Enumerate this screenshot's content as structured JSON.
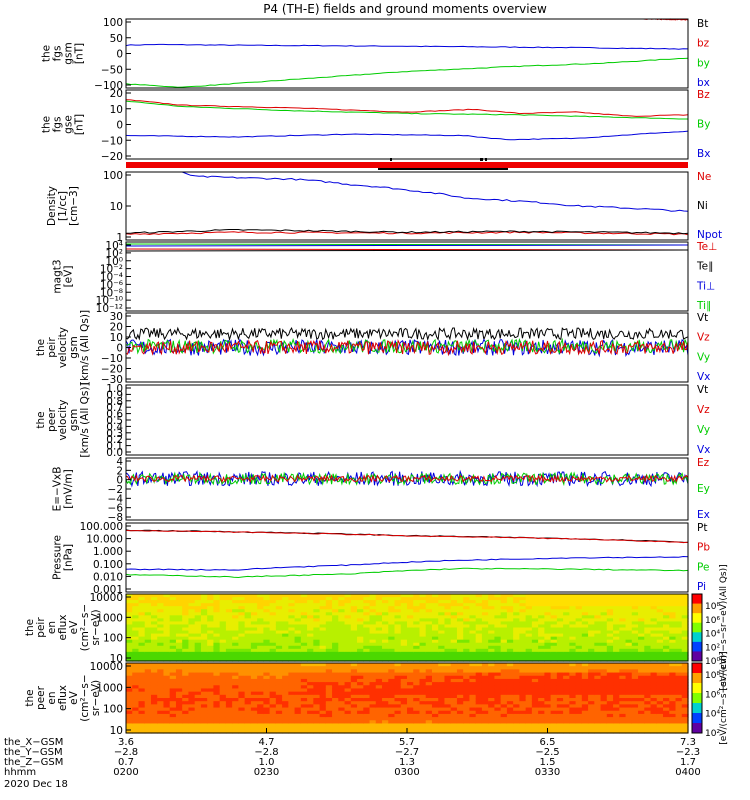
{
  "title": "P4 (TH-E) fields and ground moments overview",
  "chart_data": [
    {
      "type": "line",
      "panel": "fgs_gsm",
      "ylabel": [
        "the",
        "fgs",
        "gsm",
        "[nT]"
      ],
      "ylim": [
        -100,
        100
      ],
      "yticks": [
        "100",
        "50",
        "0",
        "−50",
        "−100"
      ],
      "legend": [
        {
          "name": "Bt",
          "color": "#000000"
        },
        {
          "name": "bz",
          "color": "#dd0000"
        },
        {
          "name": "by",
          "color": "#00cc00"
        },
        {
          "name": "bx",
          "color": "#0000dd"
        }
      ],
      "series": [
        {
          "name": "bx",
          "color": "#0000dd",
          "x": [
            0,
            0.05,
            0.2,
            0.5,
            0.8,
            1
          ],
          "values": [
            24,
            26,
            24,
            21,
            17,
            13
          ]
        },
        {
          "name": "by",
          "color": "#00cc00",
          "x": [
            0,
            0.1,
            0.3,
            0.5,
            0.7,
            0.85,
            1
          ],
          "values": [
            -88,
            -98,
            -75,
            -52,
            -37,
            -28,
            -13
          ]
        },
        {
          "name": "bz",
          "color": "#dd0000",
          "x": [
            0.92,
            1
          ],
          "values": [
            100,
            98
          ]
        }
      ]
    },
    {
      "type": "line",
      "panel": "fgs_gse",
      "ylabel": [
        "the",
        "fgs",
        "gse",
        "[nT]"
      ],
      "ylim": [
        -25,
        25
      ],
      "yticks": [
        "20",
        "10",
        "0",
        "−10",
        "−20"
      ],
      "legend": [
        {
          "name": "Bz",
          "color": "#dd0000"
        },
        {
          "name": "By",
          "color": "#00cc00"
        },
        {
          "name": "Bx",
          "color": "#0000dd"
        }
      ],
      "series": [
        {
          "name": "Bz",
          "color": "#dd0000",
          "x": [
            0,
            0.1,
            0.3,
            0.5,
            0.62,
            0.7,
            0.8,
            0.9,
            1
          ],
          "values": [
            18,
            14,
            12,
            9,
            11,
            8,
            9,
            6,
            7
          ]
        },
        {
          "name": "By",
          "color": "#00cc00",
          "x": [
            0,
            0.1,
            0.3,
            0.5,
            0.7,
            0.9,
            1
          ],
          "values": [
            17,
            13,
            10,
            8,
            7,
            5,
            4
          ]
        },
        {
          "name": "Bx",
          "color": "#0000dd",
          "x": [
            0,
            0.2,
            0.4,
            0.6,
            0.68,
            0.8,
            0.95,
            1
          ],
          "values": [
            -8,
            -9,
            -7,
            -8,
            -11,
            -10,
            -6,
            -5
          ]
        }
      ]
    },
    {
      "type": "line",
      "panel": "density",
      "ylabel": [
        "Density",
        "[1/cc]",
        "[cm−3]"
      ],
      "yscale": "log",
      "ylim": [
        0.25,
        250
      ],
      "yticks": [
        "100",
        "10",
        "1"
      ],
      "legend": [
        {
          "name": "Ne",
          "color": "#dd0000"
        },
        {
          "name": "Ni",
          "color": "#000000"
        },
        {
          "name": "Npot",
          "color": "#0000dd"
        }
      ],
      "series": [
        {
          "name": "Npot",
          "color": "#0000dd",
          "x": [
            0.1,
            0.12,
            0.2,
            0.3,
            0.4,
            0.5,
            0.6,
            0.8,
            1
          ],
          "values": [
            250,
            160,
            140,
            120,
            70,
            40,
            18,
            8,
            4.5
          ]
        },
        {
          "name": "Ne",
          "color": "#dd0000",
          "x": [
            0,
            0.2,
            0.5,
            0.7,
            1
          ],
          "values": [
            0.45,
            0.55,
            0.5,
            0.55,
            0.45
          ]
        },
        {
          "name": "Ni",
          "color": "#000000",
          "x": [
            0,
            0.2,
            0.5,
            0.7,
            1
          ],
          "values": [
            0.5,
            0.7,
            0.55,
            0.6,
            0.5
          ]
        }
      ]
    },
    {
      "type": "line",
      "panel": "temperature",
      "ylabel": [
        "magt3",
        "[eV]"
      ],
      "yscale": "log",
      "yticks": [
        "10⁴",
        "10²",
        "10⁰",
        "10⁻²",
        "10⁻⁴",
        "10⁻⁶",
        "10⁻⁸",
        "10⁻¹⁰",
        "10⁻¹²"
      ],
      "legend": [
        {
          "name": "Te⊥",
          "color": "#dd0000"
        },
        {
          "name": "Te∥",
          "color": "#000000"
        },
        {
          "name": "Ti⊥",
          "color": "#0000dd"
        },
        {
          "name": "Ti∥",
          "color": "#00cc00"
        }
      ]
    },
    {
      "type": "line",
      "panel": "peir_velocity",
      "ylabel": [
        "the",
        "peir",
        "velocity",
        "gsm",
        "[km/s (All Qs)]"
      ],
      "ylim": [
        -30,
        30
      ],
      "yticks": [
        "30",
        "20",
        "10",
        "0",
        "−10",
        "−20",
        "−30"
      ],
      "legend": [
        {
          "name": "Vt",
          "color": "#000000"
        },
        {
          "name": "Vz",
          "color": "#dd0000"
        },
        {
          "name": "Vy",
          "color": "#00cc00"
        },
        {
          "name": "Vx",
          "color": "#0000dd"
        }
      ],
      "series": [
        {
          "name": "Vt",
          "color": "#000000",
          "center": 12,
          "noise": 5
        },
        {
          "name": "Vx",
          "color": "#0000dd",
          "center": 0,
          "noise": 7
        },
        {
          "name": "Vy",
          "color": "#00cc00",
          "center": 1,
          "noise": 6
        },
        {
          "name": "Vz",
          "color": "#dd0000",
          "center": 0,
          "noise": 6
        }
      ]
    },
    {
      "type": "line",
      "panel": "peer_velocity",
      "ylabel": [
        "the",
        "peer",
        "velocity",
        "gsm",
        "[km/s (All Qs)]"
      ],
      "ylim": [
        0,
        1
      ],
      "yticks": [
        "1.0",
        "0.9",
        "0.8",
        "0.7",
        "0.6",
        "0.5",
        "0.4",
        "0.3",
        "0.2",
        "0.1",
        "0.0"
      ],
      "legend": [
        {
          "name": "Vt",
          "color": "#000000"
        },
        {
          "name": "Vz",
          "color": "#dd0000"
        },
        {
          "name": "Vy",
          "color": "#00cc00"
        },
        {
          "name": "Vx",
          "color": "#0000dd"
        }
      ]
    },
    {
      "type": "line",
      "panel": "efield",
      "ylabel": [
        "E=−VxB",
        "[mV/m]"
      ],
      "ylim": [
        -8,
        4
      ],
      "yticks": [
        "4",
        "2",
        "0",
        "−2",
        "−4",
        "−6",
        "−8"
      ],
      "legend": [
        {
          "name": "Ez",
          "color": "#dd0000"
        },
        {
          "name": "Ey",
          "color": "#00cc00"
        },
        {
          "name": "Ex",
          "color": "#0000dd"
        }
      ],
      "series": [
        {
          "name": "Ex",
          "color": "#0000dd",
          "center": 0,
          "noise": 1.4
        },
        {
          "name": "Ey",
          "color": "#00cc00",
          "center": 0,
          "noise": 1.1
        },
        {
          "name": "Ez",
          "color": "#dd0000",
          "center": 0,
          "noise": 0.6
        }
      ]
    },
    {
      "type": "line",
      "panel": "pressure",
      "ylabel": [
        "Pressure",
        "[nPa]"
      ],
      "yscale": "log",
      "ylim": [
        0.001,
        100
      ],
      "yticks": [
        "100.000",
        "10.000",
        "1.000",
        "0.100",
        "0.010",
        "0.001"
      ],
      "legend": [
        {
          "name": "Pt",
          "color": "#000000"
        },
        {
          "name": "Pb",
          "color": "#dd0000"
        },
        {
          "name": "Pe",
          "color": "#00cc00"
        },
        {
          "name": "Pi",
          "color": "#0000dd"
        }
      ],
      "series": [
        {
          "name": "Pt",
          "color": "#000000",
          "x": [
            0,
            0.5,
            1
          ],
          "values": [
            30,
            12,
            4
          ]
        },
        {
          "name": "Pb",
          "color": "#dd0000",
          "x": [
            0,
            0.5,
            1
          ],
          "values": [
            29,
            11.5,
            3.8
          ]
        },
        {
          "name": "Pi",
          "color": "#0000dd",
          "x": [
            0,
            0.2,
            0.4,
            0.6,
            0.8,
            1
          ],
          "values": [
            0.045,
            0.04,
            0.09,
            0.2,
            0.3,
            0.35
          ]
        },
        {
          "name": "Pe",
          "color": "#00cc00",
          "x": [
            0,
            0.2,
            0.4,
            0.6,
            0.8,
            1
          ],
          "values": [
            0.018,
            0.012,
            0.02,
            0.05,
            0.045,
            0.035
          ]
        }
      ]
    },
    {
      "type": "heatmap",
      "panel": "peir_eflux",
      "ylabel": [
        "the",
        "peir",
        "en",
        "eflux",
        "eV",
        "(cm²−s−",
        "sr−eV)"
      ],
      "yscale": "log",
      "yticks": [
        "10000",
        "1000",
        "100",
        "10"
      ],
      "colorbar_ticks": [
        "10⁸",
        "10⁶",
        "10⁴",
        "10²",
        "10⁰"
      ],
      "colorbar_label": "[eV/(cm²−s−sr−eV)(All Qs)]"
    },
    {
      "type": "heatmap",
      "panel": "peer_eflux",
      "ylabel": [
        "the",
        "peer",
        "en",
        "eflux",
        "eV",
        "(cm²−s−",
        "sr−eV)"
      ],
      "yscale": "log",
      "yticks": [
        "10000",
        "1000",
        "100",
        "10"
      ],
      "colorbar_ticks": [
        "10⁸",
        "10⁶",
        "10⁴",
        "10²"
      ],
      "colorbar_label": "[eV/(cm²−s−sr−eV)]"
    }
  ],
  "xaxis": {
    "rows": [
      {
        "label": "the_X−GSM",
        "values": [
          "3.6",
          "4.7",
          "5.7",
          "6.5",
          "7.3"
        ]
      },
      {
        "label": "the_Y−GSM",
        "values": [
          "−2.8",
          "−2.8",
          "−2.7",
          "−2.5",
          "−2.3"
        ]
      },
      {
        "label": "the_Z−GSM",
        "values": [
          "0.7",
          "1.0",
          "1.3",
          "1.5",
          "1.7"
        ]
      },
      {
        "label": "hhmm",
        "values": [
          "0200",
          "0230",
          "0300",
          "0330",
          "0400"
        ]
      }
    ],
    "date": "2020 Dec 18"
  }
}
